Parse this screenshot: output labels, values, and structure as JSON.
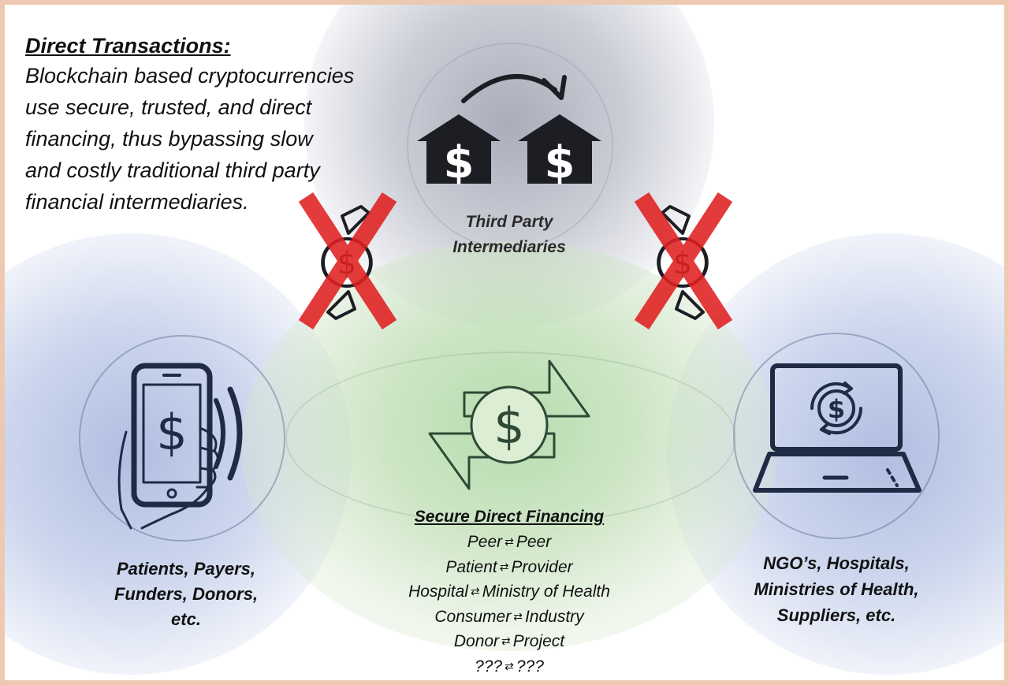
{
  "intro": {
    "title": "Direct Transactions:",
    "lines": [
      "Blockchain based cryptocurrencies",
      "use secure, trusted, and direct",
      "financing, thus bypassing slow",
      "and costly traditional third party",
      "financial intermediaries."
    ]
  },
  "third_party": {
    "lines": [
      "Third Party",
      "Intermediaries"
    ]
  },
  "left_node": {
    "lines": [
      "Patients, Payers,",
      "Funders, Donors,",
      "etc."
    ]
  },
  "right_node": {
    "lines": [
      "NGO’s, Hospitals,",
      "Ministries of Health,",
      "Suppliers, etc."
    ]
  },
  "center": {
    "title": "Secure Direct Financing",
    "pairs": [
      {
        "a": "Peer",
        "b": "Peer"
      },
      {
        "a": "Patient",
        "b": "Provider"
      },
      {
        "a": "Hospital",
        "b": "Ministry of Health"
      },
      {
        "a": "Consumer",
        "b": "Industry"
      },
      {
        "a": "Donor",
        "b": "Project"
      },
      {
        "a": "???",
        "b": "???"
      }
    ],
    "arrow_glyph": "⇄"
  },
  "icons": {
    "banks": "bank-dollar-icon",
    "blocked": "blocked-exchange-icon",
    "phone": "smartphone-payment-icon",
    "laptop": "laptop-dollar-icon",
    "exchange": "dollar-exchange-icon"
  },
  "colors": {
    "cross": "#e02020",
    "icon_dark": "#1c1e24",
    "icon_green": "#2e4a36",
    "icon_navy": "#1f2a44",
    "border": "#ecc9b0"
  }
}
